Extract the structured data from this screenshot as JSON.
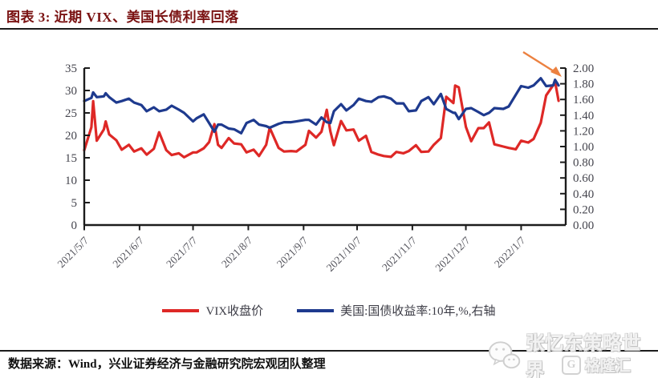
{
  "title": {
    "text": "图表 3: 近期 VIX、美国长债利率回落"
  },
  "footer": {
    "text": "数据来源：Wind，兴业证券经济与金融研究院宏观团队整理"
  },
  "watermarks": {
    "wechat_text": "张忆东策略世界",
    "wechat_icon": "wechat-chat-bubbles",
    "gelonghui_logo": "G",
    "gelonghui_text": "格隆汇"
  },
  "legend": {
    "items": [
      {
        "label": "VIX收盘价",
        "color": "#DE2826"
      },
      {
        "label": "美国:国债收益率:10年,%,右轴",
        "color": "#1E3A8E"
      }
    ]
  },
  "chart_data": {
    "type": "line",
    "title": "近期VIX、美国长债利率回落",
    "grid": false,
    "legend_position": "bottom",
    "x_domain": [
      "2021-05-07",
      "2022-02-01"
    ],
    "x_ticks": [
      {
        "label": "2021/5/7",
        "date": "2021-05-07"
      },
      {
        "label": "2021/6/7",
        "date": "2021-06-07"
      },
      {
        "label": "2021/7/7",
        "date": "2021-07-07"
      },
      {
        "label": "2021/8/7",
        "date": "2021-08-07"
      },
      {
        "label": "2021/9/7",
        "date": "2021-09-07"
      },
      {
        "label": "2021/10/7",
        "date": "2021-10-07"
      },
      {
        "label": "2021/11/7",
        "date": "2021-11-07"
      },
      {
        "label": "2021/12/7",
        "date": "2021-12-07"
      },
      {
        "label": "2022/1/7",
        "date": "2022-01-07"
      }
    ],
    "left_axis": {
      "min": 0,
      "max": 35,
      "ticks": [
        35,
        30,
        25,
        20,
        15,
        10,
        5,
        0
      ]
    },
    "right_axis": {
      "min": 0,
      "max": 2,
      "ticks": [
        "2.00",
        "1.80",
        "1.60",
        "1.40",
        "1.20",
        "1.00",
        "0.80",
        "0.60",
        "0.40",
        "0.20",
        "0.00"
      ]
    },
    "x": [
      "2021-05-07",
      "2021-05-11",
      "2021-05-12",
      "2021-05-14",
      "2021-05-18",
      "2021-05-19",
      "2021-05-21",
      "2021-05-25",
      "2021-05-28",
      "2021-06-01",
      "2021-06-04",
      "2021-06-08",
      "2021-06-11",
      "2021-06-15",
      "2021-06-18",
      "2021-06-22",
      "2021-06-25",
      "2021-06-29",
      "2021-07-02",
      "2021-07-07",
      "2021-07-09",
      "2021-07-13",
      "2021-07-16",
      "2021-07-19",
      "2021-07-21",
      "2021-07-23",
      "2021-07-27",
      "2021-07-30",
      "2021-08-03",
      "2021-08-06",
      "2021-08-10",
      "2021-08-13",
      "2021-08-17",
      "2021-08-19",
      "2021-08-24",
      "2021-08-27",
      "2021-08-31",
      "2021-09-03",
      "2021-09-08",
      "2021-09-10",
      "2021-09-14",
      "2021-09-17",
      "2021-09-20",
      "2021-09-22",
      "2021-09-24",
      "2021-09-28",
      "2021-10-01",
      "2021-10-05",
      "2021-10-08",
      "2021-10-12",
      "2021-10-15",
      "2021-10-19",
      "2021-10-22",
      "2021-10-26",
      "2021-10-29",
      "2021-11-02",
      "2021-11-05",
      "2021-11-09",
      "2021-11-12",
      "2021-11-16",
      "2021-11-19",
      "2021-11-23",
      "2021-11-26",
      "2021-11-30",
      "2021-12-01",
      "2021-12-03",
      "2021-12-07",
      "2021-12-10",
      "2021-12-14",
      "2021-12-17",
      "2021-12-20",
      "2021-12-23",
      "2021-12-28",
      "2021-12-31",
      "2022-01-04",
      "2022-01-07",
      "2022-01-11",
      "2022-01-14",
      "2022-01-18",
      "2022-01-21",
      "2022-01-25",
      "2022-01-26",
      "2022-01-28"
    ],
    "series": [
      {
        "name": "VIX收盘价",
        "axis": "left",
        "color": "#DE2826",
        "values": [
          16.7,
          21.8,
          27.6,
          18.8,
          21.3,
          23.1,
          20.2,
          18.9,
          16.8,
          17.9,
          16.4,
          17.1,
          15.7,
          17.0,
          20.7,
          16.7,
          15.6,
          16.0,
          15.1,
          16.2,
          16.2,
          17.1,
          18.5,
          22.5,
          17.9,
          17.2,
          19.4,
          18.2,
          18.0,
          16.2,
          16.8,
          15.4,
          17.9,
          21.7,
          17.2,
          16.4,
          16.5,
          16.4,
          17.9,
          21.0,
          19.5,
          20.8,
          25.7,
          20.9,
          17.8,
          23.2,
          21.1,
          21.3,
          18.8,
          19.9,
          16.3,
          15.7,
          15.4,
          15.2,
          16.3,
          16.0,
          16.5,
          17.8,
          16.3,
          16.4,
          17.9,
          19.4,
          28.6,
          27.2,
          31.1,
          30.7,
          21.9,
          18.7,
          21.6,
          21.6,
          22.9,
          18.0,
          17.5,
          17.2,
          16.9,
          18.8,
          18.4,
          19.2,
          22.8,
          28.9,
          31.2,
          32.0,
          27.7
        ]
      },
      {
        "name": "美国:国债收益率:10年,%,右轴",
        "axis": "right",
        "color": "#1E3A8E",
        "values": [
          1.58,
          1.62,
          1.69,
          1.63,
          1.64,
          1.68,
          1.63,
          1.56,
          1.58,
          1.61,
          1.56,
          1.53,
          1.45,
          1.5,
          1.45,
          1.47,
          1.52,
          1.47,
          1.43,
          1.32,
          1.36,
          1.41,
          1.3,
          1.19,
          1.28,
          1.28,
          1.23,
          1.22,
          1.17,
          1.3,
          1.34,
          1.28,
          1.26,
          1.24,
          1.29,
          1.31,
          1.31,
          1.32,
          1.34,
          1.34,
          1.28,
          1.37,
          1.31,
          1.3,
          1.45,
          1.54,
          1.46,
          1.53,
          1.61,
          1.58,
          1.57,
          1.63,
          1.64,
          1.61,
          1.55,
          1.55,
          1.45,
          1.46,
          1.58,
          1.63,
          1.54,
          1.67,
          1.48,
          1.43,
          1.43,
          1.35,
          1.48,
          1.49,
          1.44,
          1.4,
          1.43,
          1.49,
          1.48,
          1.51,
          1.66,
          1.77,
          1.75,
          1.78,
          1.87,
          1.77,
          1.78,
          1.85,
          1.78
        ]
      }
    ],
    "annotation": {
      "type": "arrow",
      "color": "#EC8140",
      "note": "指向期末VIX与美债利率高点回落处"
    }
  }
}
